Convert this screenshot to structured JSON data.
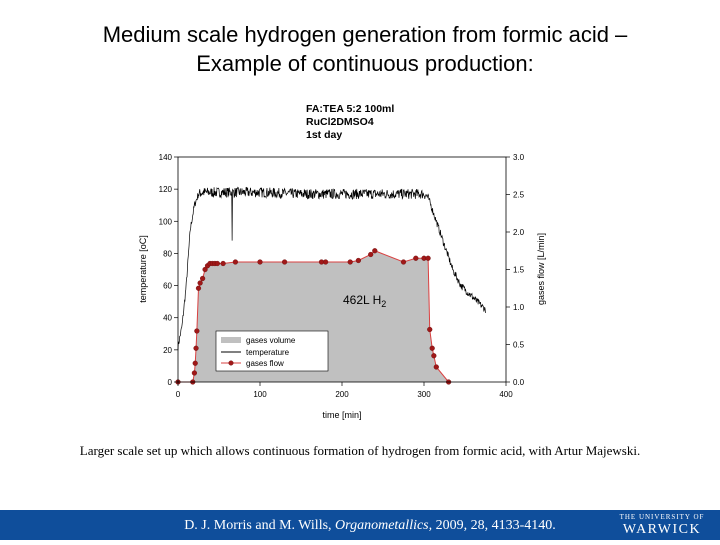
{
  "slide": {
    "title_line1": "Medium scale hydrogen generation from formic acid –",
    "title_line2": "Example of continuous production:",
    "caption": "Larger scale set up which allows continuous formation of hydrogen from formic acid, with Artur Majewski.",
    "citation_pre": "D. J. Morris and M. Wills, ",
    "citation_journal": "Organometallics,",
    "citation_post": " 2009, 28, 4133-4140.",
    "logo_small": "THE UNIVERSITY OF",
    "logo_big": "WARWICK",
    "footer_color": "#0f4e9b"
  },
  "chart_data": {
    "type": "line",
    "title_lines": [
      "FA:TEA 5:2 100ml",
      "RuCl2DMSO4",
      "1st day"
    ],
    "xlabel": "time [min]",
    "ylabel_left": "temperature [oC]",
    "ylabel_right": "gases flow [L/min]",
    "xlim": [
      0,
      400
    ],
    "ylim_left": [
      0,
      140
    ],
    "ylim_right": [
      0,
      3.0
    ],
    "x_ticks": [
      "0",
      "100",
      "200",
      "300",
      "400"
    ],
    "y_left_ticks": [
      "0",
      "20",
      "40",
      "60",
      "80",
      "100",
      "120",
      "140"
    ],
    "y_right_ticks": [
      "0.0",
      "0.5",
      "1.0",
      "1.5",
      "2.0",
      "2.5",
      "3.0"
    ],
    "annotation": "462L H",
    "annotation_sub": "2",
    "legend_position": "bottom-left",
    "legend": [
      {
        "label": "gases volume",
        "kind": "area"
      },
      {
        "label": "temperature",
        "kind": "line"
      },
      {
        "label": "gases flow",
        "kind": "line-marker"
      }
    ],
    "colors": {
      "flow": "#d94040",
      "marker": "#a01818",
      "area": "#c0c0c0",
      "temperature": "#000000"
    },
    "series": [
      {
        "name": "gases flow",
        "axis": "right",
        "x": [
          0,
          18,
          20,
          21,
          22,
          23,
          25,
          27,
          30,
          33,
          36,
          39,
          42,
          45,
          48,
          55,
          70,
          100,
          130,
          175,
          180,
          210,
          220,
          235,
          240,
          275,
          290,
          300,
          305,
          307,
          310,
          312,
          315,
          330
        ],
        "y": [
          0.0,
          0.0,
          0.12,
          0.25,
          0.45,
          0.68,
          1.25,
          1.32,
          1.38,
          1.5,
          1.55,
          1.58,
          1.58,
          1.58,
          1.58,
          1.58,
          1.6,
          1.6,
          1.6,
          1.6,
          1.6,
          1.6,
          1.62,
          1.7,
          1.75,
          1.6,
          1.65,
          1.65,
          1.65,
          0.7,
          0.45,
          0.35,
          0.2,
          0.0
        ]
      },
      {
        "name": "temperature",
        "axis": "left",
        "x": [
          0,
          5,
          10,
          15,
          20,
          25,
          30,
          40,
          60,
          100,
          150,
          200,
          250,
          300,
          305,
          315,
          325,
          335,
          345,
          355,
          365,
          375
        ],
        "y": [
          22,
          35,
          60,
          95,
          110,
          117,
          118,
          118,
          118,
          118,
          117,
          117,
          117,
          117,
          115,
          100,
          85,
          70,
          60,
          55,
          50,
          45
        ]
      }
    ]
  }
}
